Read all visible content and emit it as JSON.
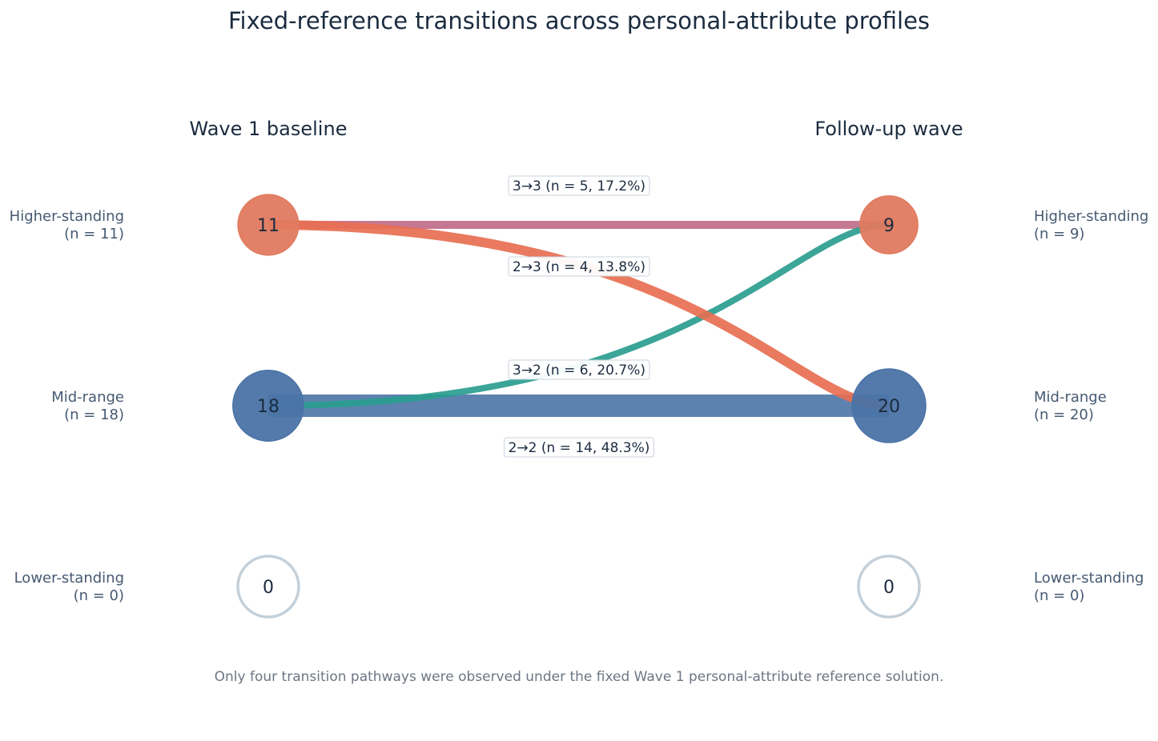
{
  "chart_data": {
    "type": "diagram",
    "title": "Fixed-reference transitions across personal-attribute profiles",
    "columns": [
      "Wave 1 baseline",
      "Follow-up wave"
    ],
    "profiles": [
      {
        "name": "Higher-standing",
        "code": 3
      },
      {
        "name": "Mid-range",
        "code": 2
      },
      {
        "name": "Lower-standing",
        "code": 1
      }
    ],
    "left_nodes": [
      {
        "profile": "Higher-standing",
        "n": 11,
        "label_name": "Higher-standing",
        "label_n": "(n = 11)",
        "count_text": "11"
      },
      {
        "profile": "Mid-range",
        "n": 18,
        "label_name": "Mid-range",
        "label_n": "(n = 18)",
        "count_text": "18"
      },
      {
        "profile": "Lower-standing",
        "n": 0,
        "label_name": "Lower-standing",
        "label_n": "(n = 0)",
        "count_text": "0"
      }
    ],
    "right_nodes": [
      {
        "profile": "Higher-standing",
        "n": 9,
        "label_name": "Higher-standing",
        "label_n": "(n = 9)",
        "count_text": "9"
      },
      {
        "profile": "Mid-range",
        "n": 20,
        "label_name": "Mid-range",
        "label_n": "(n = 20)",
        "count_text": "20"
      },
      {
        "profile": "Lower-standing",
        "n": 0,
        "label_name": "Lower-standing",
        "label_n": "(n = 0)",
        "count_text": "0"
      }
    ],
    "flows": [
      {
        "from": 3,
        "to": 3,
        "n": 5,
        "percent": 17.2,
        "label": "3→3  (n = 5, 17.2%)",
        "color": "#c06c8a"
      },
      {
        "from": 2,
        "to": 3,
        "n": 4,
        "percent": 13.8,
        "label": "2→3  (n = 4, 13.8%)",
        "color": "#2a9d8f"
      },
      {
        "from": 3,
        "to": 2,
        "n": 6,
        "percent": 20.7,
        "label": "3→2  (n = 6, 20.7%)",
        "color": "#e76f51"
      },
      {
        "from": 2,
        "to": 2,
        "n": 14,
        "percent": 48.3,
        "label": "2→2  (n = 14, 48.3%)",
        "color": "#4f77a8"
      }
    ],
    "colors": {
      "higher": "#e07a5f",
      "mid": "#4a73a6",
      "empty_stroke": "#c3d0da"
    },
    "footnote": "Only four transition pathways were observed under the fixed Wave 1 personal-attribute reference solution."
  }
}
